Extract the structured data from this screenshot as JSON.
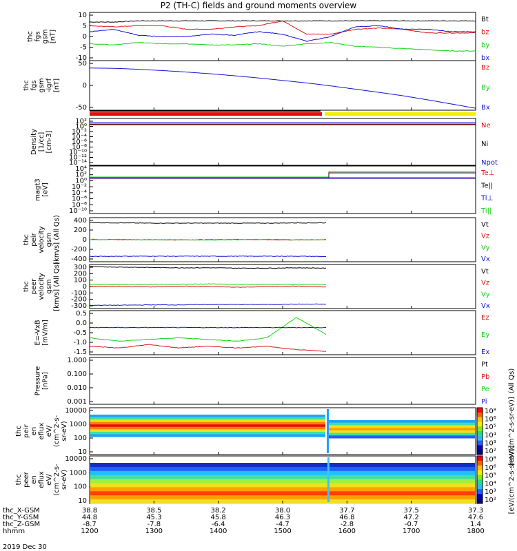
{
  "title": "P2 (TH-C) fields and ground moments overview",
  "colors": {
    "black": "#000000",
    "red": "#e01010",
    "green": "#10d010",
    "blue": "#1010d0",
    "yellow": "#f0f000"
  },
  "chart_data": [
    {
      "type": "line",
      "panel": "fgs_gsm",
      "ylabel": [
        "thc",
        "fgs",
        "gsm",
        "[nT]"
      ],
      "ylim": [
        -10,
        10
      ],
      "yticks": [
        "10",
        "5",
        "0",
        "-5",
        "-10"
      ],
      "series": [
        {
          "name": "Bt",
          "color": "black",
          "values": [
            6,
            6,
            6.5,
            6.5,
            6.5,
            6.5,
            6.5,
            6.5,
            6.5,
            6.5,
            6.5,
            6.5,
            6.5,
            6.5,
            6.5,
            6.5,
            6.5
          ]
        },
        {
          "name": "bz",
          "color": "red",
          "values": [
            4.5,
            4,
            4.5,
            4.5,
            3,
            3,
            4,
            4.5,
            6.5,
            1,
            1,
            3,
            3.5,
            3,
            1.5,
            1.5,
            1.5
          ]
        },
        {
          "name": "by",
          "color": "green",
          "values": [
            -3,
            -3.5,
            -2.5,
            -3,
            -3,
            -3.5,
            -3.5,
            -3,
            -4,
            -3,
            -2.5,
            -4,
            -4.5,
            -5,
            -5.5,
            -6,
            -6
          ]
        },
        {
          "name": "bx",
          "color": "blue",
          "values": [
            2,
            3,
            0.5,
            0,
            0,
            1,
            0.5,
            2,
            1,
            -2,
            0,
            4,
            4.5,
            3,
            3,
            2,
            2
          ]
        }
      ]
    },
    {
      "type": "line",
      "panel": "fgs_gsm_igrf",
      "ylabel": [
        "thc",
        "fgs",
        "gsm",
        "-igrf",
        "[nT]"
      ],
      "ylim": [
        -100,
        100
      ],
      "yticks": [
        "50",
        "0",
        "-50"
      ],
      "series": [
        {
          "name": "Bz",
          "color": "red",
          "values": []
        },
        {
          "name": "By",
          "color": "green",
          "values": []
        },
        {
          "name": "Bx",
          "color": "blue",
          "values": [
            70,
            69,
            65,
            60,
            54,
            47,
            39,
            30,
            20,
            10,
            -2,
            -15,
            -28,
            -42,
            -58,
            -75,
            -92
          ]
        }
      ]
    },
    {
      "type": "line",
      "panel": "density",
      "ylabel": [
        "Density",
        "[1/cc]",
        "[cm-3]"
      ],
      "ylim": [
        "1e-16",
        "1e4"
      ],
      "yticks": [
        "10²",
        "10⁰",
        "10⁻²",
        "10⁻⁴",
        "10⁻⁶",
        "10⁻⁸",
        "10⁻¹⁰",
        "10⁻¹²",
        "10⁻¹⁴"
      ],
      "series": [
        {
          "name": "Ne",
          "color": "red",
          "values": []
        },
        {
          "name": "Ni",
          "color": "black",
          "values": []
        },
        {
          "name": "Npot",
          "color": "blue",
          "values": []
        }
      ]
    },
    {
      "type": "line",
      "panel": "temperature",
      "ylabel": [
        "magt3",
        "[eV]"
      ],
      "ylim": [
        "1e-10",
        "1e6"
      ],
      "yticks": [
        "10⁴",
        "10²",
        "10⁰",
        "10⁻²",
        "10⁻⁴",
        "10⁻⁶",
        "10⁻⁸",
        "10⁻¹⁰"
      ],
      "series": [
        {
          "name": "Te⊥",
          "color": "red",
          "values": []
        },
        {
          "name": "Te||",
          "color": "black",
          "values": []
        },
        {
          "name": "Ti⊥",
          "color": "blue",
          "values": []
        },
        {
          "name": "Ti||",
          "color": "green",
          "values": []
        }
      ]
    },
    {
      "type": "line",
      "panel": "peir_velocity",
      "ylabel": [
        "thc",
        "peir",
        "velocity",
        "gsm",
        "[km/s] (All Qs)"
      ],
      "ylim": [
        -400,
        400
      ],
      "yticks": [
        "400",
        "200",
        "0",
        "-200",
        "-400"
      ],
      "series": [
        {
          "name": "Vt",
          "color": "black",
          "values": [
            310,
            305,
            300,
            300,
            300,
            300,
            300,
            305,
            305
          ]
        },
        {
          "name": "Vz",
          "color": "red",
          "values": [
            5,
            0,
            0,
            -5,
            0,
            5,
            0,
            -5,
            0
          ]
        },
        {
          "name": "Vy",
          "color": "green",
          "values": [
            0,
            5,
            0,
            0,
            -5,
            0,
            5,
            0,
            0
          ]
        },
        {
          "name": "Vx",
          "color": "blue",
          "values": [
            -305,
            -300,
            -300,
            -300,
            -300,
            -300,
            -300,
            -300,
            -305
          ]
        }
      ]
    },
    {
      "type": "line",
      "panel": "peer_velocity",
      "ylabel": [
        "thc",
        "peer",
        "velocity",
        "gsm",
        "[km/s] (All Qs)"
      ],
      "ylim": [
        -300,
        300
      ],
      "yticks": [
        "300",
        "200",
        "100",
        "0",
        "-100",
        "-200",
        "-300"
      ],
      "series": [
        {
          "name": "Vt",
          "color": "black",
          "values": [
            270,
            265,
            260,
            255,
            255,
            250,
            250,
            255,
            250
          ]
        },
        {
          "name": "Vz",
          "color": "red",
          "values": [
            5,
            0,
            -5,
            5,
            0,
            -10,
            0,
            5,
            -5
          ]
        },
        {
          "name": "Vy",
          "color": "green",
          "values": [
            30,
            25,
            30,
            30,
            35,
            30,
            30,
            30,
            30
          ]
        },
        {
          "name": "Vx",
          "color": "blue",
          "values": [
            -255,
            -255,
            -250,
            -250,
            -245,
            -245,
            -245,
            -240,
            -240
          ]
        }
      ]
    },
    {
      "type": "line",
      "panel": "e_field",
      "ylabel": [
        "E=-VxB",
        "[mV/m]"
      ],
      "ylim": [
        -1.6,
        1.0
      ],
      "yticks": [
        "0.5",
        "0.0",
        "-0.5",
        "-1.0",
        "-1.5"
      ],
      "series": [
        {
          "name": "Ez",
          "color": "red",
          "values": [
            -1.1,
            -1.2,
            -1.0,
            -1.2,
            -1.1,
            -1.2,
            -1.1,
            -1.3,
            -1.4
          ]
        },
        {
          "name": "Ey",
          "color": "green",
          "values": [
            -0.6,
            -0.8,
            -0.7,
            -0.6,
            -0.7,
            -0.8,
            -0.6,
            0.6,
            -0.4
          ]
        },
        {
          "name": "Ex",
          "color": "blue",
          "values": [
            0.0,
            0.0,
            0.0,
            0.0,
            0.0,
            0.0,
            0.0,
            0.0,
            0.0
          ]
        }
      ]
    },
    {
      "type": "line",
      "panel": "pressure",
      "ylabel": [
        "Pressure",
        "[nPa]"
      ],
      "ylim": [
        "0.001",
        "1.0"
      ],
      "yticks": [
        "1.000",
        "0.100",
        "0.010",
        "0.001"
      ],
      "series": [
        {
          "name": "Pt",
          "color": "black",
          "values": [
            0.035,
            0.035,
            0.033,
            0.032,
            0.032,
            0.031,
            0.03,
            0.03,
            0.03,
            0.22,
            0.23,
            0.23,
            0.24,
            0.24,
            0.25,
            0.25,
            0.25
          ]
        },
        {
          "name": "Pb",
          "color": "red",
          "values": [
            0.016,
            0.017,
            0.017,
            0.015,
            0.015,
            0.014,
            0.015,
            0.016,
            0.015,
            0.012,
            0.011,
            0.01,
            0.01,
            0.011,
            0.011,
            0.012,
            0.012
          ]
        },
        {
          "name": "Pe",
          "color": "green",
          "values": [
            0.014,
            0.014,
            0.013,
            0.013,
            0.012,
            0.012,
            0.012,
            0.012,
            0.012,
            0.006,
            0.005,
            0.005,
            0.005,
            0.005,
            0.005,
            0.005,
            0.005
          ]
        },
        {
          "name": "Pi",
          "color": "blue",
          "values": [
            0.015,
            0.015,
            0.014,
            0.014,
            0.014,
            0.014,
            0.013,
            0.013,
            0.013,
            0.2,
            0.21,
            0.21,
            0.22,
            0.22,
            0.23,
            0.23,
            0.23
          ]
        }
      ]
    },
    {
      "type": "heatmap",
      "panel": "peir_en_eflux",
      "ylabel": [
        "thc",
        "peir",
        "en",
        "eflux",
        "eV/",
        "(cm^2-s-",
        "sr-eV)"
      ],
      "ylim": [
        5,
        30000
      ],
      "yticks": [
        "10000",
        "1000",
        "100",
        "10"
      ]
    },
    {
      "type": "heatmap",
      "panel": "peer_en_eflux",
      "ylabel": [
        "thc",
        "peer",
        "en",
        "eflux",
        "eV/",
        "(cm^2-s-",
        "sr-eV)"
      ],
      "ylim": [
        5,
        30000
      ],
      "yticks": [
        "10000",
        "1000",
        "100",
        "10"
      ]
    }
  ],
  "right_labels": {
    "pressure_qs": "(All Qs)",
    "colorbar1": "[eV/(cm^2-s-sr-eV)]",
    "colorbar2": "[eV/(cm^2-s-sr-eV)]",
    "colorbar_ticks": [
      "10⁸",
      "10⁶",
      "10⁵",
      "10⁴",
      "10³",
      "10²"
    ]
  },
  "xaxis": {
    "rows": [
      {
        "label": "thc_X-GSM",
        "values": [
          "38.8",
          "38.5",
          "38.2",
          "38.0",
          "37.7",
          "37.5",
          "37.3"
        ]
      },
      {
        "label": "thc_Y-GSM",
        "values": [
          "44.8",
          "45.3",
          "45.8",
          "46.3",
          "46.8",
          "47.2",
          "47.6"
        ]
      },
      {
        "label": "thc_Z-GSM",
        "values": [
          "-8.7",
          "-7.8",
          "-6.4",
          "-4.7",
          "-2.8",
          "-0.7",
          "1.4"
        ]
      },
      {
        "label": "hhmm",
        "values": [
          "1200",
          "1300",
          "1400",
          "1500",
          "1600",
          "1700",
          "1800"
        ]
      }
    ],
    "date": "2019 Dec 30"
  }
}
